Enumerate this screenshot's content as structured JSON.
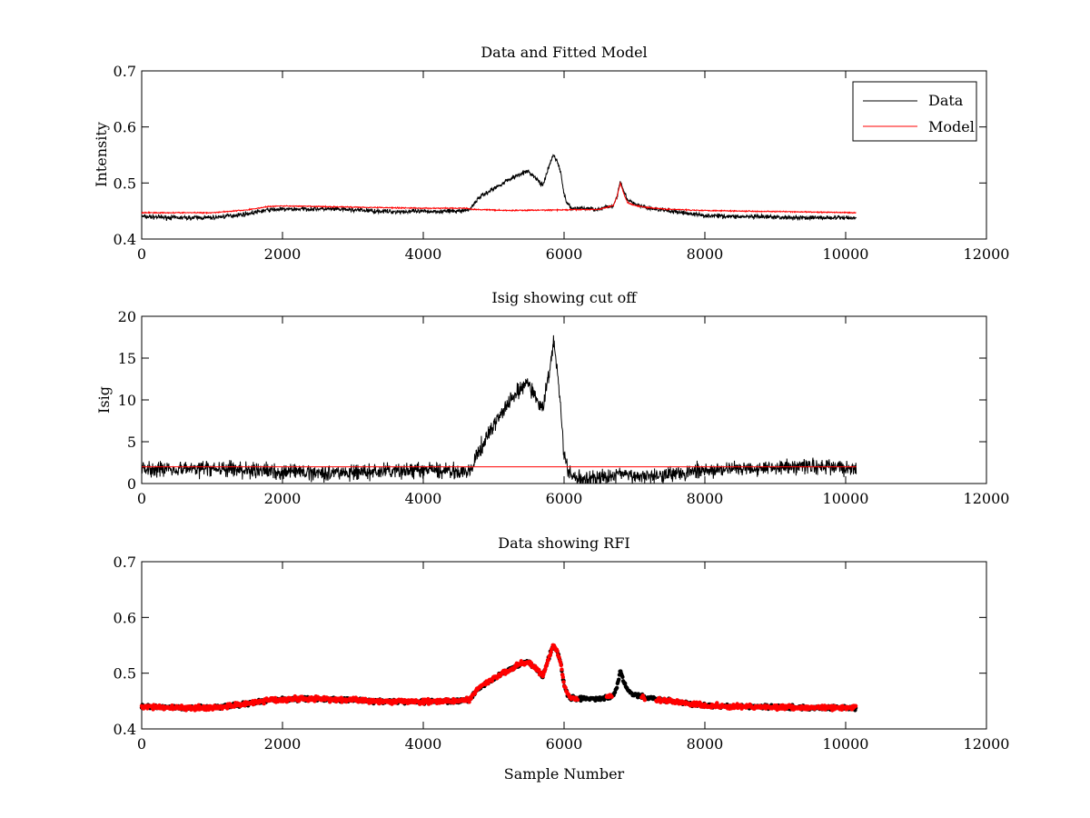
{
  "chart_data": [
    {
      "type": "line",
      "title": "Data and Fitted Model",
      "xlabel": "",
      "ylabel": "Intensity",
      "xlim": [
        0,
        12000
      ],
      "ylim": [
        0.4,
        0.7
      ],
      "xticks": [
        0,
        2000,
        4000,
        6000,
        8000,
        10000,
        12000
      ],
      "xtick_labels": [
        "0",
        "2000",
        "4000",
        "6000",
        "8000",
        "10000",
        "12000"
      ],
      "yticks": [
        0.4,
        0.5,
        0.6,
        0.7
      ],
      "ytick_labels": [
        "0.4",
        "0.5",
        "0.6",
        "0.7"
      ],
      "grid": false,
      "legend": "top-right",
      "series": [
        {
          "name": "Data",
          "color": "#000000",
          "noise": 0.006,
          "x": [
            0,
            500,
            1000,
            1500,
            1800,
            2000,
            2500,
            3000,
            3500,
            4000,
            4500,
            4650,
            4700,
            4800,
            5000,
            5200,
            5400,
            5500,
            5600,
            5700,
            5800,
            5850,
            5900,
            5950,
            6000,
            6050,
            6100,
            6300,
            6500,
            6700,
            6750,
            6800,
            6850,
            6900,
            7000,
            7200,
            7500,
            8000,
            8500,
            9000,
            9500,
            10000,
            10150
          ],
          "y": [
            0.44,
            0.438,
            0.438,
            0.445,
            0.452,
            0.453,
            0.454,
            0.452,
            0.449,
            0.449,
            0.45,
            0.452,
            0.46,
            0.475,
            0.49,
            0.505,
            0.518,
            0.52,
            0.508,
            0.495,
            0.535,
            0.55,
            0.54,
            0.52,
            0.48,
            0.462,
            0.455,
            0.455,
            0.453,
            0.46,
            0.475,
            0.505,
            0.485,
            0.47,
            0.462,
            0.455,
            0.45,
            0.442,
            0.44,
            0.439,
            0.438,
            0.438,
            0.438
          ]
        },
        {
          "name": "Model",
          "color": "#ff0000",
          "noise": 0.0015,
          "x": [
            0,
            1000,
            1500,
            1800,
            2000,
            2500,
            3000,
            3500,
            4000,
            4600,
            4700,
            5200,
            6000,
            6500,
            6700,
            6750,
            6800,
            6850,
            6900,
            7000,
            7200,
            7500,
            8000,
            9000,
            10150
          ],
          "y": [
            0.447,
            0.447,
            0.452,
            0.458,
            0.459,
            0.458,
            0.457,
            0.456,
            0.455,
            0.455,
            0.453,
            0.451,
            0.452,
            0.453,
            0.46,
            0.475,
            0.5,
            0.48,
            0.465,
            0.46,
            0.456,
            0.453,
            0.451,
            0.449,
            0.447
          ]
        }
      ]
    },
    {
      "type": "line",
      "title": "Isig showing cut off",
      "xlabel": "",
      "ylabel": "Isig",
      "xlim": [
        0,
        12000
      ],
      "ylim": [
        0,
        20
      ],
      "xticks": [
        0,
        2000,
        4000,
        6000,
        8000,
        10000,
        12000
      ],
      "xtick_labels": [
        "0",
        "2000",
        "4000",
        "6000",
        "8000",
        "10000",
        "12000"
      ],
      "yticks": [
        0,
        5,
        10,
        15,
        20
      ],
      "ytick_labels": [
        "0",
        "5",
        "10",
        "15",
        "20"
      ],
      "grid": false,
      "series": [
        {
          "color": "#000000",
          "noise": 1.4,
          "x": [
            0,
            1000,
            2000,
            3000,
            4000,
            4500,
            4650,
            4700,
            4800,
            5000,
            5200,
            5400,
            5500,
            5600,
            5700,
            5800,
            5850,
            5900,
            5950,
            6000,
            6050,
            6100,
            6300,
            6500,
            6700,
            6800,
            6900,
            7200,
            7500,
            8000,
            8500,
            9000,
            9500,
            10000,
            10150
          ],
          "y": [
            1.8,
            1.8,
            1.4,
            1.3,
            1.6,
            1.5,
            1.2,
            2.0,
            4.0,
            7.0,
            9.5,
            11.5,
            12.0,
            10.0,
            9.0,
            14.0,
            17.0,
            14.0,
            9.0,
            3.5,
            1.5,
            0.8,
            0.5,
            0.6,
            0.9,
            1.4,
            0.8,
            1.0,
            1.2,
            1.5,
            1.8,
            2.0,
            2.1,
            1.9,
            1.9
          ]
        },
        {
          "color": "#ff0000",
          "noise": 0,
          "x": [
            0,
            10150
          ],
          "y": [
            2.0,
            2.0
          ]
        }
      ]
    },
    {
      "type": "scatter",
      "title": "Data showing RFI",
      "xlabel": "Sample Number",
      "ylabel": "",
      "xlim": [
        0,
        12000
      ],
      "ylim": [
        0.4,
        0.7
      ],
      "xticks": [
        0,
        2000,
        4000,
        6000,
        8000,
        10000,
        12000
      ],
      "xtick_labels": [
        "0",
        "2000",
        "4000",
        "6000",
        "8000",
        "10000",
        "12000"
      ],
      "yticks": [
        0.4,
        0.5,
        0.6,
        0.7
      ],
      "ytick_labels": [
        "0.4",
        "0.5",
        "0.6",
        "0.7"
      ],
      "grid": false,
      "series": [
        {
          "color": "#000000",
          "noise": 0.005,
          "x": [
            0,
            500,
            1000,
            1500,
            1800,
            2000,
            2500,
            3000,
            3500,
            4000,
            4500,
            4650,
            4700,
            4800,
            5000,
            5200,
            5400,
            5500,
            5600,
            5700,
            5800,
            5850,
            5900,
            5950,
            6000,
            6050,
            6100,
            6300,
            6500,
            6700,
            6750,
            6800,
            6850,
            6900,
            7000,
            7200,
            7500,
            8000,
            8500,
            9000,
            9500,
            10000,
            10150
          ],
          "y": [
            0.44,
            0.438,
            0.438,
            0.445,
            0.452,
            0.453,
            0.454,
            0.452,
            0.449,
            0.449,
            0.45,
            0.452,
            0.46,
            0.475,
            0.49,
            0.505,
            0.518,
            0.52,
            0.508,
            0.495,
            0.535,
            0.55,
            0.54,
            0.52,
            0.48,
            0.462,
            0.455,
            0.455,
            0.453,
            0.46,
            0.475,
            0.505,
            0.485,
            0.47,
            0.462,
            0.455,
            0.45,
            0.442,
            0.44,
            0.439,
            0.438,
            0.438,
            0.438
          ]
        },
        {
          "color": "#ff0000",
          "noise": 0.006,
          "gaps": [
            [
              6200,
              6600
            ],
            [
              6680,
              7100
            ],
            [
              7150,
              7300
            ]
          ],
          "x": [
            0,
            500,
            1000,
            1500,
            1800,
            2000,
            2500,
            3000,
            3500,
            4000,
            4500,
            4650,
            4700,
            4800,
            5000,
            5200,
            5400,
            5500,
            5600,
            5700,
            5800,
            5850,
            5900,
            5950,
            6000,
            6050,
            6100,
            6300,
            6500,
            6700,
            6750,
            6800,
            6850,
            6900,
            7000,
            7200,
            7500,
            8000,
            8500,
            9000,
            9500,
            10000,
            10150
          ],
          "y": [
            0.44,
            0.438,
            0.438,
            0.445,
            0.452,
            0.453,
            0.454,
            0.452,
            0.449,
            0.449,
            0.45,
            0.452,
            0.46,
            0.475,
            0.49,
            0.505,
            0.518,
            0.52,
            0.508,
            0.495,
            0.535,
            0.55,
            0.54,
            0.52,
            0.48,
            0.462,
            0.455,
            0.455,
            0.453,
            0.46,
            0.475,
            0.505,
            0.485,
            0.47,
            0.462,
            0.455,
            0.45,
            0.442,
            0.44,
            0.439,
            0.438,
            0.438,
            0.438
          ]
        }
      ]
    }
  ]
}
